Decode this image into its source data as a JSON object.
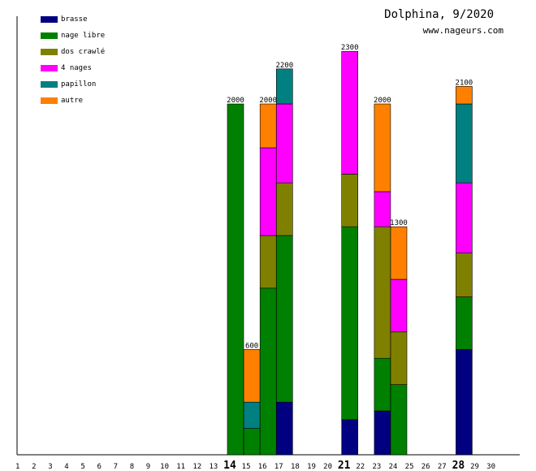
{
  "header": {
    "title": "Dolphina, 9/2020",
    "site": "www.nageurs.com"
  },
  "chart_data": {
    "type": "bar",
    "stacked": true,
    "title": "Dolphina, 9/2020",
    "xlabel": "",
    "ylabel": "",
    "ylim": [
      0,
      2500
    ],
    "categories": [
      "1",
      "2",
      "3",
      "4",
      "5",
      "6",
      "7",
      "8",
      "9",
      "10",
      "11",
      "12",
      "13",
      "14",
      "15",
      "16",
      "17",
      "18",
      "19",
      "20",
      "21",
      "22",
      "23",
      "24",
      "25",
      "26",
      "27",
      "28",
      "29",
      "30"
    ],
    "highlight_days": [
      "14",
      "21",
      "28"
    ],
    "series": [
      {
        "name": "brasse",
        "color": "#000080",
        "values": [
          0,
          0,
          0,
          0,
          0,
          0,
          0,
          0,
          0,
          0,
          0,
          0,
          0,
          0,
          0,
          0,
          300,
          0,
          0,
          0,
          200,
          0,
          250,
          0,
          0,
          0,
          0,
          600,
          0,
          0
        ]
      },
      {
        "name": "nage libre",
        "color": "#008000",
        "values": [
          0,
          0,
          0,
          0,
          0,
          0,
          0,
          0,
          0,
          0,
          0,
          0,
          0,
          2000,
          150,
          950,
          950,
          0,
          0,
          0,
          1100,
          0,
          300,
          400,
          0,
          0,
          0,
          300,
          0,
          0
        ]
      },
      {
        "name": "dos crawlé",
        "color": "#808000",
        "values": [
          0,
          0,
          0,
          0,
          0,
          0,
          0,
          0,
          0,
          0,
          0,
          0,
          0,
          0,
          0,
          300,
          300,
          0,
          0,
          0,
          300,
          0,
          750,
          300,
          0,
          0,
          0,
          250,
          0,
          0
        ]
      },
      {
        "name": "4 nages",
        "color": "#ff00ff",
        "values": [
          0,
          0,
          0,
          0,
          0,
          0,
          0,
          0,
          0,
          0,
          0,
          0,
          0,
          0,
          0,
          500,
          450,
          0,
          0,
          0,
          700,
          0,
          200,
          300,
          0,
          0,
          0,
          400,
          0,
          0
        ]
      },
      {
        "name": "papillon",
        "color": "#008080",
        "values": [
          0,
          0,
          0,
          0,
          0,
          0,
          0,
          0,
          0,
          0,
          0,
          0,
          0,
          0,
          150,
          0,
          200,
          0,
          0,
          0,
          0,
          0,
          0,
          0,
          0,
          0,
          0,
          450,
          0,
          0
        ]
      },
      {
        "name": "autre",
        "color": "#ff8000",
        "values": [
          0,
          0,
          0,
          0,
          0,
          0,
          0,
          0,
          0,
          0,
          0,
          0,
          0,
          0,
          300,
          250,
          0,
          0,
          0,
          0,
          0,
          0,
          500,
          300,
          0,
          0,
          0,
          100,
          0,
          0
        ]
      }
    ],
    "totals": [
      null,
      null,
      null,
      null,
      null,
      null,
      null,
      null,
      null,
      null,
      null,
      null,
      null,
      "2000",
      "600",
      "2000",
      "2200",
      null,
      null,
      null,
      "2300",
      null,
      "2000",
      "1300",
      null,
      null,
      null,
      "2100",
      null,
      null
    ]
  }
}
